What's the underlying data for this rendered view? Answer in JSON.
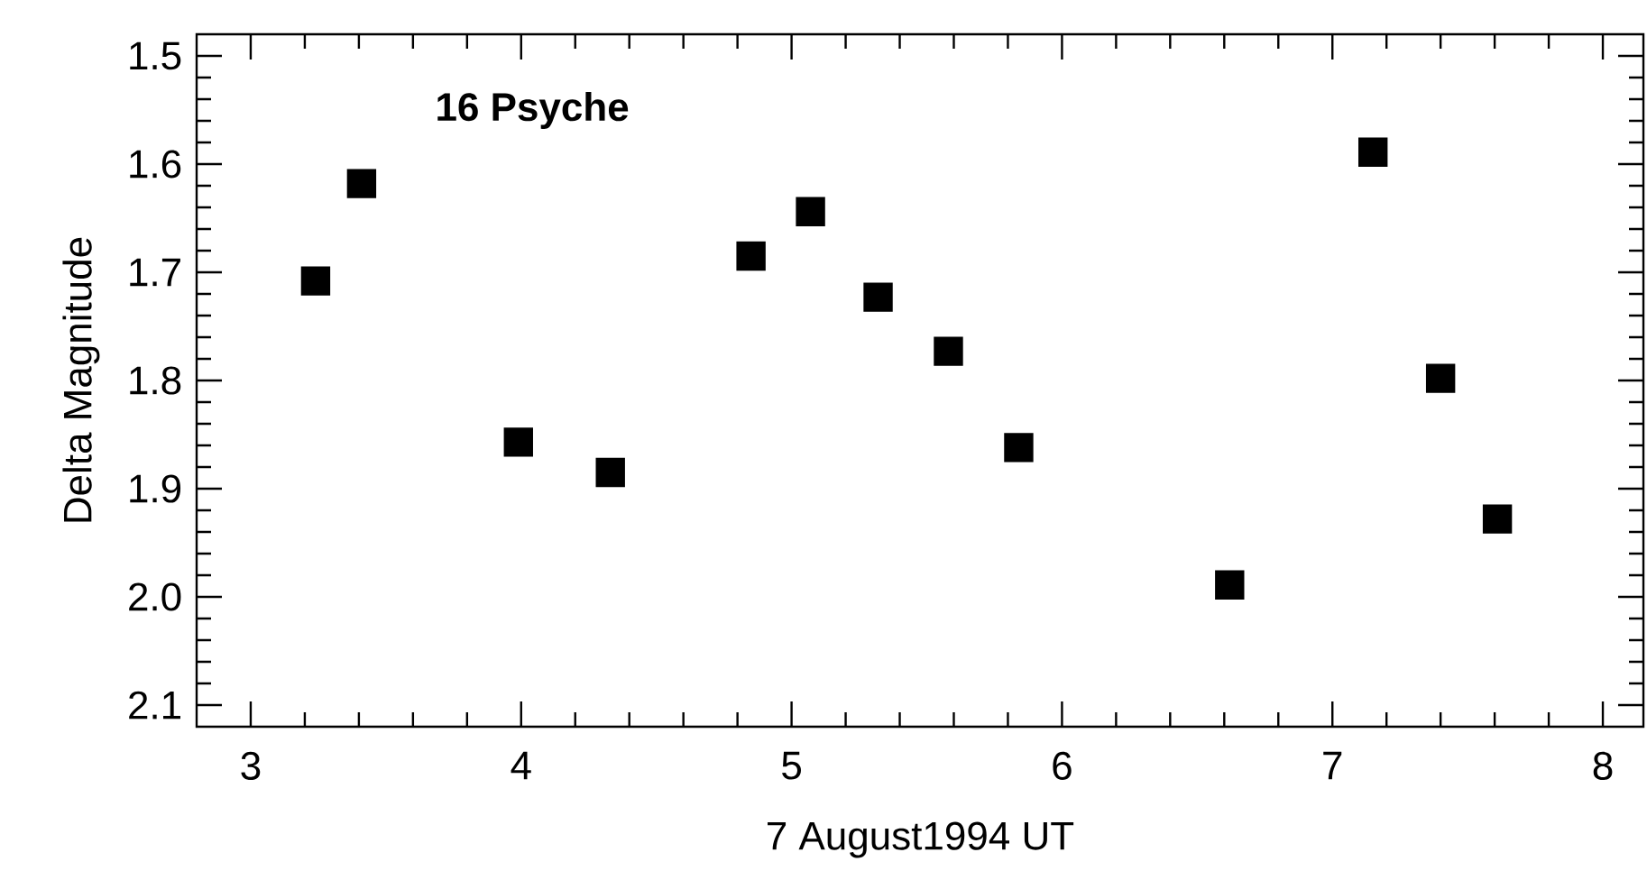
{
  "chart_data": {
    "type": "scatter",
    "title": "16 Psyche",
    "xlabel": "7 August1994 UT",
    "ylabel": "Delta Magnitude",
    "x": [
      3.24,
      3.41,
      3.99,
      4.33,
      4.85,
      5.07,
      5.32,
      5.58,
      5.84,
      6.62,
      7.15,
      7.4,
      7.61
    ],
    "values": [
      1.708,
      1.618,
      1.857,
      1.885,
      1.685,
      1.644,
      1.723,
      1.773,
      1.862,
      1.989,
      1.589,
      1.798,
      1.928
    ],
    "color": "#000000",
    "marker": "square",
    "xlim": [
      2.8,
      8.15
    ],
    "xticks": [
      3,
      4,
      5,
      6,
      7,
      8
    ],
    "ylim": [
      2.12,
      1.48
    ],
    "yticks": [
      1.5,
      1.6,
      1.7,
      1.8,
      1.9,
      {
        "value": 2,
        "label": "2.0"
      },
      2.1
    ],
    "grid": false
  }
}
